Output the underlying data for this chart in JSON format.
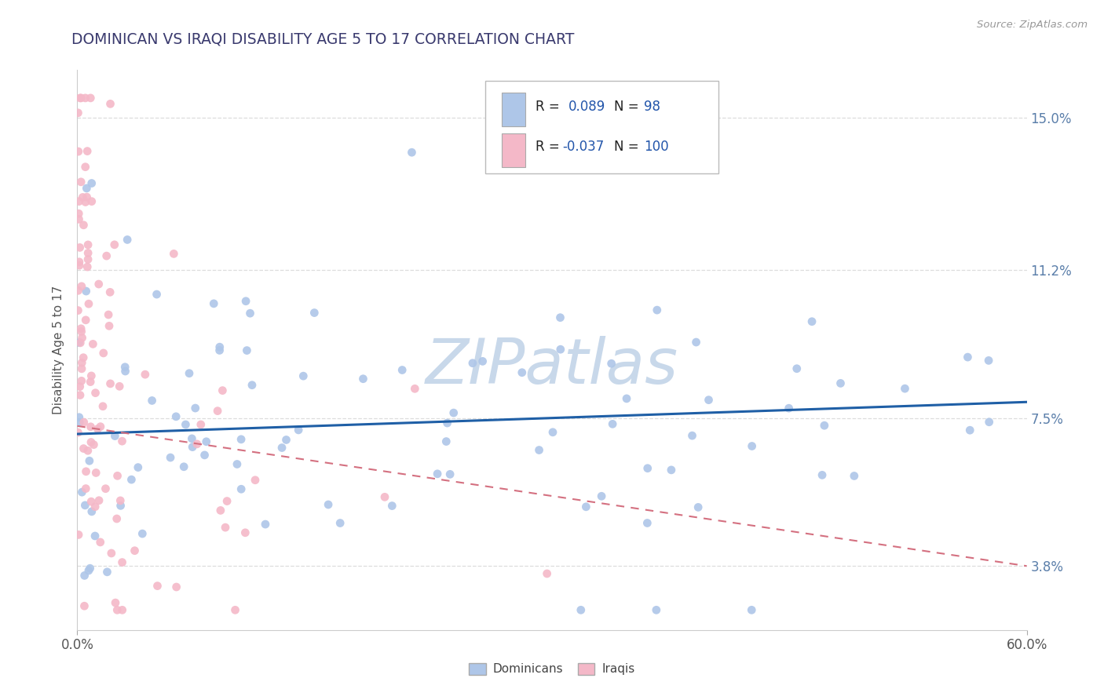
{
  "title": "DOMINICAN VS IRAQI DISABILITY AGE 5 TO 17 CORRELATION CHART",
  "source_text": "Source: ZipAtlas.com",
  "ylabel": "Disability Age 5 to 17",
  "x_min": 0.0,
  "x_max": 0.6,
  "y_min": 0.022,
  "y_max": 0.162,
  "y_ticks": [
    0.038,
    0.075,
    0.112,
    0.15
  ],
  "y_tick_labels": [
    "3.8%",
    "7.5%",
    "11.2%",
    "15.0%"
  ],
  "x_ticks": [
    0.0,
    0.6
  ],
  "x_tick_labels": [
    "0.0%",
    "60.0%"
  ],
  "dominican_color": "#aec6e8",
  "iraqi_color": "#f4b8c8",
  "dominican_line_color": "#1f5fa6",
  "iraqi_line_color": "#d47080",
  "background_color": "#ffffff",
  "grid_color": "#cccccc",
  "title_color": "#3a3a6e",
  "watermark_text": "ZIPatlas",
  "watermark_color": "#c8d8ea",
  "dominican_R": 0.089,
  "iraqi_R": -0.037,
  "dominican_N": 98,
  "iraqi_N": 100,
  "dom_line_x0": 0.0,
  "dom_line_x1": 0.6,
  "dom_line_y0": 0.071,
  "dom_line_y1": 0.079,
  "iraqi_line_x0": 0.0,
  "iraqi_line_x1": 0.6,
  "iraqi_line_y0": 0.073,
  "iraqi_line_y1": 0.038
}
